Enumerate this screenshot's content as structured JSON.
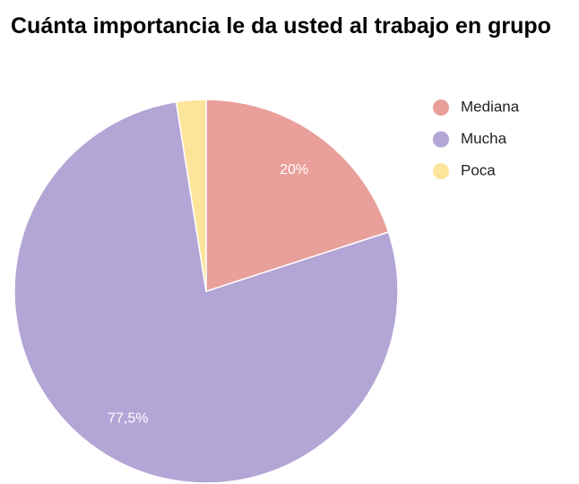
{
  "chart_data": {
    "type": "pie",
    "title": "Cuánta importancia le da usted al trabajo en grupo",
    "categories": [
      "Mediana",
      "Mucha",
      "Poca"
    ],
    "values": [
      20,
      77.5,
      2.5
    ],
    "value_labels": [
      "20%",
      "77,5%",
      null
    ],
    "colors": [
      "#e99f9a",
      "#b3a5d5",
      "#fde49b"
    ],
    "legend": "right"
  }
}
